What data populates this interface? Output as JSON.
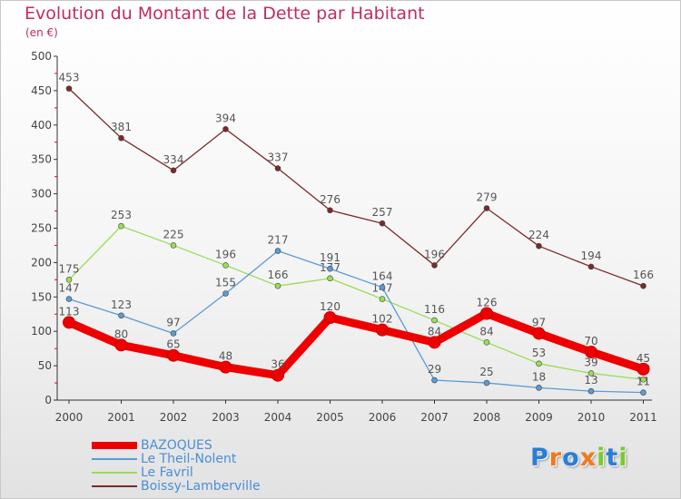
{
  "chart_data": {
    "type": "line",
    "title": "Evolution du Montant de la Dette par Habitant",
    "subtitle": "(en €)",
    "x": [
      "2000",
      "2001",
      "2002",
      "2003",
      "2004",
      "2005",
      "2006",
      "2007",
      "2008",
      "2009",
      "2010",
      "2011"
    ],
    "ylim": [
      0,
      500
    ],
    "yticks": [
      0,
      50,
      100,
      150,
      200,
      250,
      300,
      350,
      400,
      450,
      500
    ],
    "grid": false,
    "legend_placement": "bottom-left",
    "series": [
      {
        "name": "BAZOQUES",
        "color": "#ee0000",
        "values": [
          113,
          80,
          65,
          48,
          36,
          120,
          102,
          84,
          126,
          97,
          70,
          45
        ]
      },
      {
        "name": "Le Theil-Nolent",
        "color": "#5a9bd5",
        "values": [
          147,
          123,
          97,
          155,
          217,
          191,
          164,
          29,
          25,
          18,
          13,
          11
        ]
      },
      {
        "name": "Le Favril",
        "color": "#99dd55",
        "values": [
          175,
          253,
          225,
          196,
          166,
          177,
          147,
          116,
          84,
          53,
          39,
          30
        ]
      },
      {
        "name": "Boissy-Lamberville",
        "color": "#7a2a2a",
        "values": [
          453,
          381,
          334,
          394,
          337,
          276,
          257,
          196,
          279,
          224,
          194,
          166
        ]
      }
    ]
  },
  "logo": {
    "letters": [
      "P",
      "r",
      "o",
      "x",
      "i",
      "t",
      "i"
    ],
    "colors": [
      "#2a7fd4",
      "#f07a1a",
      "#2a7fd4",
      "#f07a1a",
      "#7acb2a",
      "#2a7fd4",
      "#7acb2a"
    ]
  }
}
